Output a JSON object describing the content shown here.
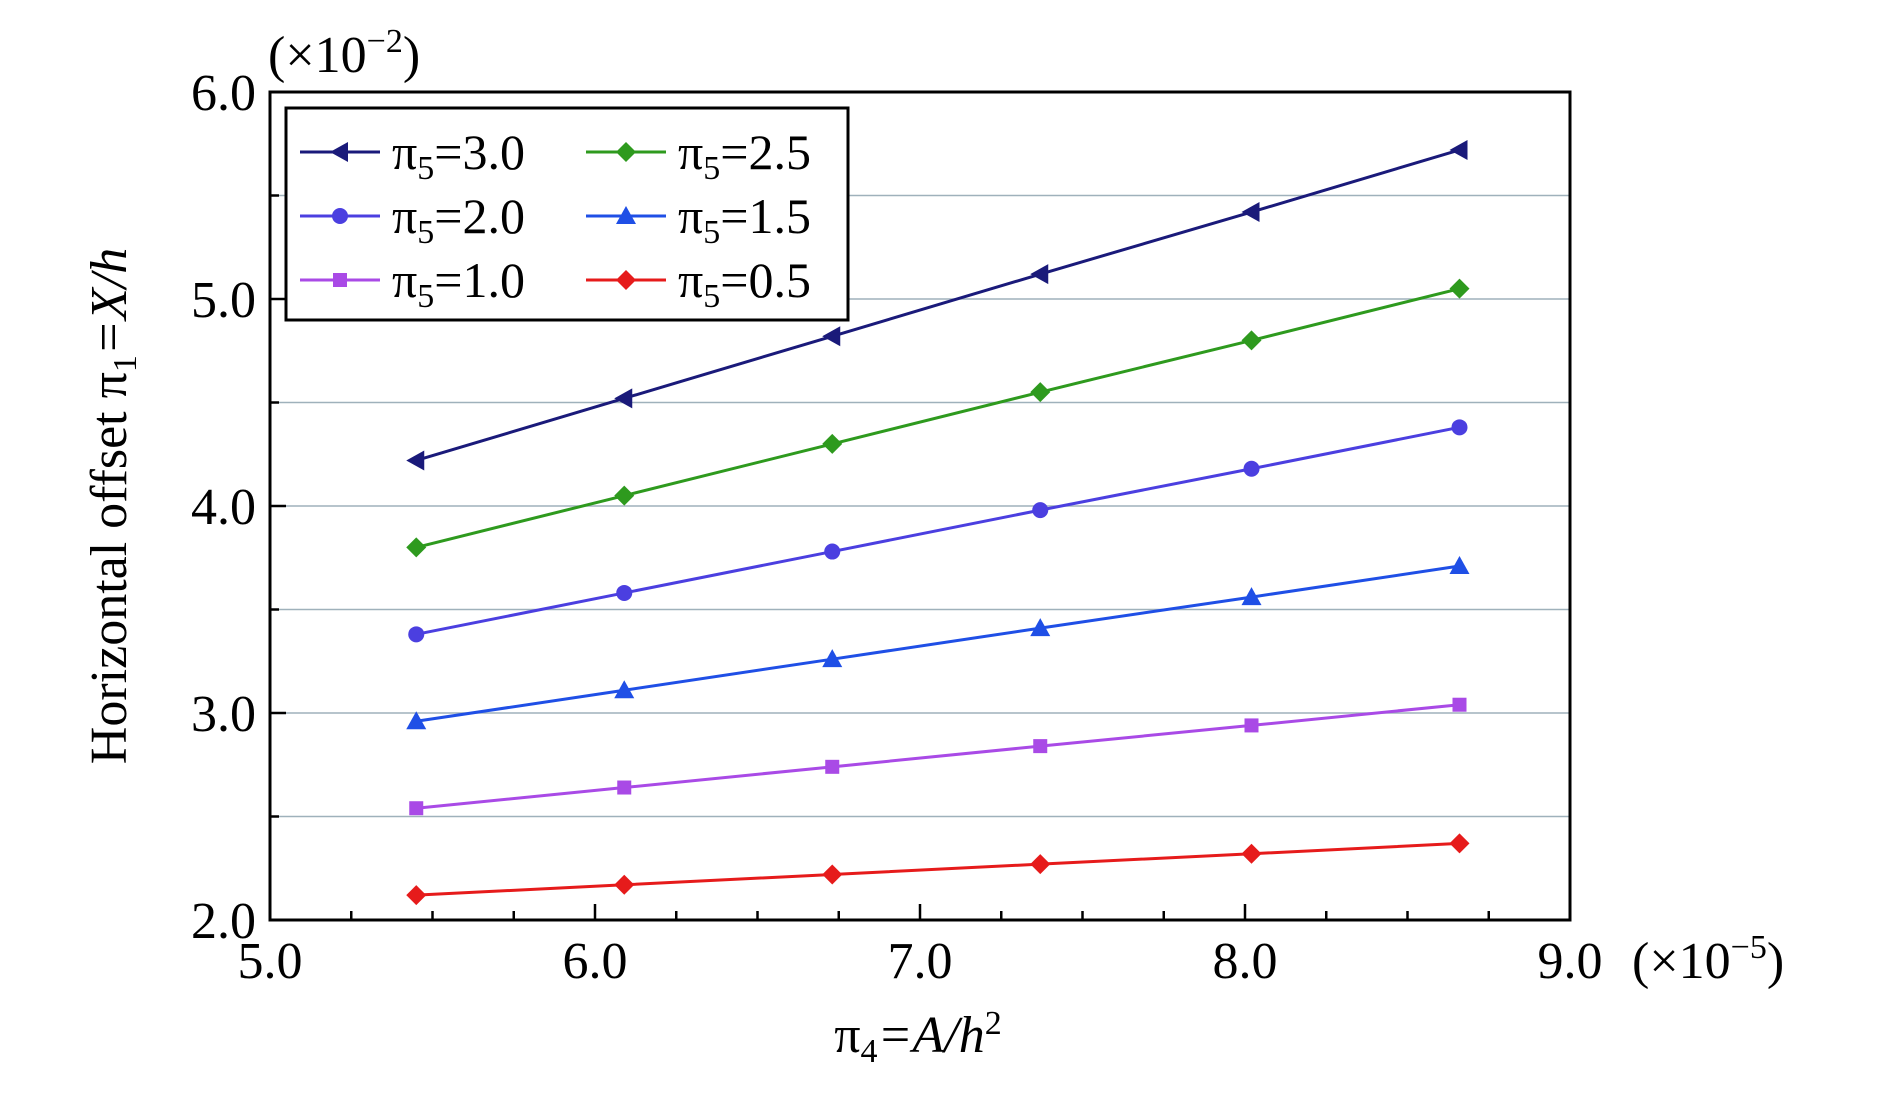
{
  "chart_data": {
    "type": "line",
    "x_axis": {
      "title_main": "π",
      "title_sub": "4",
      "title_rest": "=A/h",
      "title_sup": "2",
      "ticks": [
        "5.0",
        "6.0",
        "7.0",
        "8.0",
        "9.0"
      ],
      "multiplier": "(×10",
      "multiplier_exp": "−5",
      "multiplier_close": ")",
      "range": [
        5.0,
        9.0
      ]
    },
    "y_axis": {
      "title_prefix": "Horizontal offset π",
      "title_sub": "1",
      "title_rest": "=X/h",
      "ticks": [
        "2.0",
        "3.0",
        "4.0",
        "5.0",
        "6.0"
      ],
      "multiplier": "(×10",
      "multiplier_exp": "−2",
      "multiplier_close": ")",
      "range": [
        2.0,
        6.0
      ]
    },
    "grid": "horizontal",
    "legend_position": "top-left",
    "x": [
      5.45,
      6.09,
      6.73,
      7.37,
      8.02,
      8.66
    ],
    "series": [
      {
        "name": "π5=3.0",
        "label_main": "π",
        "label_sub": "5",
        "label_rest": "=3.0",
        "color": "#1a1a7a",
        "marker": "triangle-left",
        "values": [
          4.22,
          4.52,
          4.82,
          5.12,
          5.42,
          5.72
        ]
      },
      {
        "name": "π5=2.5",
        "label_main": "π",
        "label_sub": "5",
        "label_rest": "=2.5",
        "color": "#2e9a1e",
        "marker": "diamond",
        "values": [
          3.8,
          4.05,
          4.3,
          4.55,
          4.8,
          5.05
        ]
      },
      {
        "name": "π5=2.0",
        "label_main": "π",
        "label_sub": "5",
        "label_rest": "=2.0",
        "color": "#4b3fe0",
        "marker": "circle",
        "values": [
          3.38,
          3.58,
          3.78,
          3.98,
          4.18,
          4.38
        ]
      },
      {
        "name": "π5=1.5",
        "label_main": "π",
        "label_sub": "5",
        "label_rest": "=1.5",
        "color": "#1f4fe6",
        "marker": "triangle-up",
        "values": [
          2.96,
          3.11,
          3.26,
          3.41,
          3.56,
          3.71
        ]
      },
      {
        "name": "π5=1.0",
        "label_main": "π",
        "label_sub": "5",
        "label_rest": "=1.0",
        "color": "#a94ae6",
        "marker": "square",
        "values": [
          2.54,
          2.64,
          2.74,
          2.84,
          2.94,
          3.04
        ]
      },
      {
        "name": "π5=0.5",
        "label_main": "π",
        "label_sub": "5",
        "label_rest": "=0.5",
        "color": "#e61b1b",
        "marker": "diamond",
        "values": [
          2.12,
          2.17,
          2.22,
          2.27,
          2.32,
          2.37
        ]
      }
    ]
  }
}
